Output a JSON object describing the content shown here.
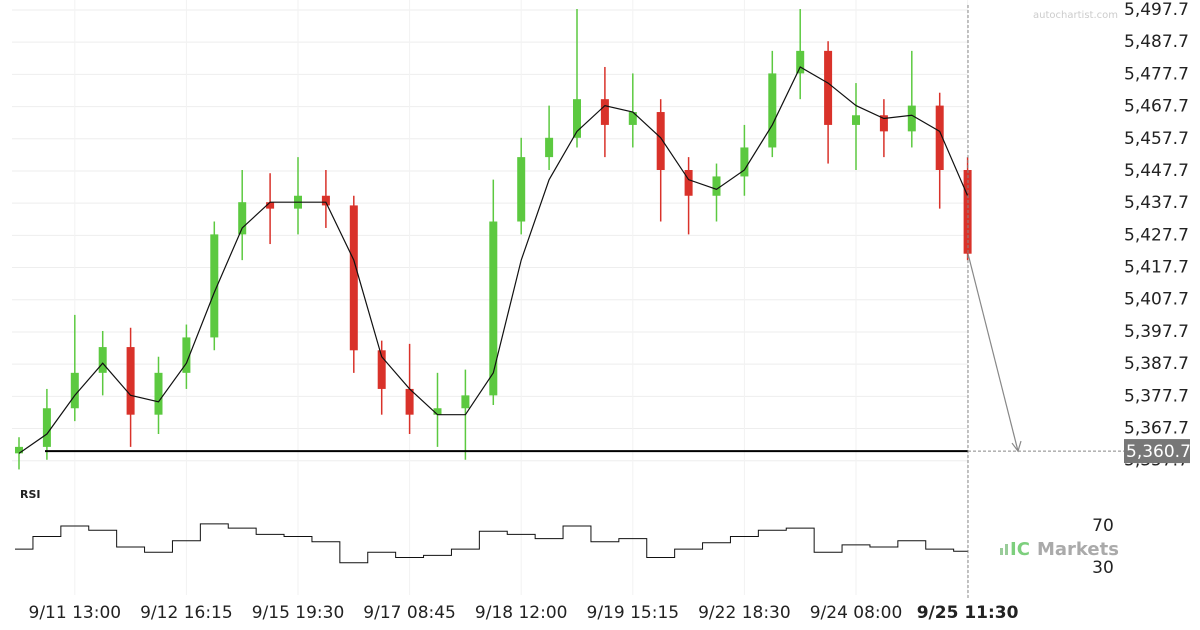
{
  "chart_data": [
    {
      "type": "candlestick",
      "categories": [
        null,
        null,
        "9/11 13:00",
        null,
        null,
        null,
        "9/12 16:15",
        null,
        null,
        null,
        "9/15 19:30",
        null,
        null,
        null,
        "9/17 08:45",
        null,
        null,
        null,
        "9/18 12:00",
        null,
        null,
        null,
        "9/19 15:15",
        null,
        null,
        null,
        "9/22 18:30",
        null,
        null,
        null,
        "9/24 08:00",
        null,
        null,
        null,
        "9/25 11:30"
      ],
      "open": [
        5360,
        5362,
        5374,
        5385,
        5393,
        5372,
        5385,
        5396,
        5428,
        5438,
        5436,
        5440,
        5437,
        5392,
        5380,
        5372,
        5374,
        5378,
        5432,
        5452,
        5458,
        5470,
        5462,
        5466,
        5448,
        5440,
        5446,
        5455,
        5478,
        5485,
        5462,
        5465,
        5460,
        5468,
        5448
      ],
      "high": [
        5365,
        5380,
        5403,
        5398,
        5399,
        5390,
        5400,
        5432,
        5448,
        5447,
        5452,
        5448,
        5440,
        5395,
        5394,
        5385,
        5386,
        5445,
        5458,
        5468,
        5498,
        5480,
        5478,
        5470,
        5452,
        5450,
        5462,
        5485,
        5498,
        5488,
        5475,
        5470,
        5485,
        5472,
        5452
      ],
      "low": [
        5355,
        5358,
        5370,
        5378,
        5362,
        5366,
        5380,
        5392,
        5420,
        5425,
        5428,
        5430,
        5385,
        5372,
        5366,
        5362,
        5358,
        5375,
        5428,
        5448,
        5455,
        5452,
        5455,
        5432,
        5428,
        5432,
        5440,
        5452,
        5470,
        5450,
        5448,
        5452,
        5455,
        5436,
        5420
      ],
      "close": [
        5362,
        5374,
        5385,
        5393,
        5372,
        5385,
        5396,
        5428,
        5438,
        5436,
        5440,
        5437,
        5392,
        5380,
        5372,
        5374,
        5378,
        5432,
        5452,
        5458,
        5470,
        5462,
        5466,
        5448,
        5440,
        5446,
        5455,
        5478,
        5485,
        5462,
        5465,
        5460,
        5468,
        5448,
        5422
      ],
      "up_color": "#5cc940",
      "down_color": "#d9322a",
      "ma_values": [
        5360,
        5366,
        5378,
        5388,
        5378,
        5376,
        5388,
        5410,
        5430,
        5438,
        5438,
        5438,
        5420,
        5390,
        5380,
        5372,
        5372,
        5385,
        5420,
        5445,
        5460,
        5468,
        5466,
        5458,
        5445,
        5442,
        5448,
        5462,
        5480,
        5475,
        5468,
        5464,
        5465,
        5460,
        5440
      ],
      "ma_color": "#111111",
      "ylim": [
        5354.2,
        5500.8
      ],
      "yticks": [
        {
          "value": 5357.7,
          "label": "5,357.7"
        },
        {
          "value": 5367.7,
          "label": "5,367.7"
        },
        {
          "value": 5377.7,
          "label": "5,377.7"
        },
        {
          "value": 5387.7,
          "label": "5,387.7"
        },
        {
          "value": 5397.7,
          "label": "5,397.7"
        },
        {
          "value": 5407.7,
          "label": "5,407.7"
        },
        {
          "value": 5417.7,
          "label": "5,417.7"
        },
        {
          "value": 5427.7,
          "label": "5,427.7"
        },
        {
          "value": 5437.7,
          "label": "5,437.7"
        },
        {
          "value": 5447.7,
          "label": "5,447.7"
        },
        {
          "value": 5457.7,
          "label": "5,457.7"
        },
        {
          "value": 5467.7,
          "label": "5,467.7"
        },
        {
          "value": 5477.7,
          "label": "5,477.7"
        },
        {
          "value": 5487.7,
          "label": "5,487.7"
        },
        {
          "value": 5497.7,
          "label": "5,497.7"
        }
      ],
      "grid": true,
      "support_level": 5360.7,
      "support_label": "5,360.7",
      "bold_last_label": true,
      "watermark": "autochartist.com"
    },
    {
      "type": "line",
      "title": "RSI",
      "values": [
        48,
        60,
        70,
        66,
        50,
        45,
        56,
        72,
        68,
        62,
        60,
        55,
        35,
        45,
        40,
        42,
        48,
        65,
        62,
        58,
        70,
        55,
        58,
        40,
        48,
        54,
        60,
        66,
        68,
        45,
        52,
        50,
        56,
        48,
        46
      ],
      "color": "#111111",
      "ylim": [
        15,
        100
      ],
      "yticks": [
        30,
        70
      ],
      "logo_prefix": "IC",
      "logo_text": "Markets"
    }
  ]
}
